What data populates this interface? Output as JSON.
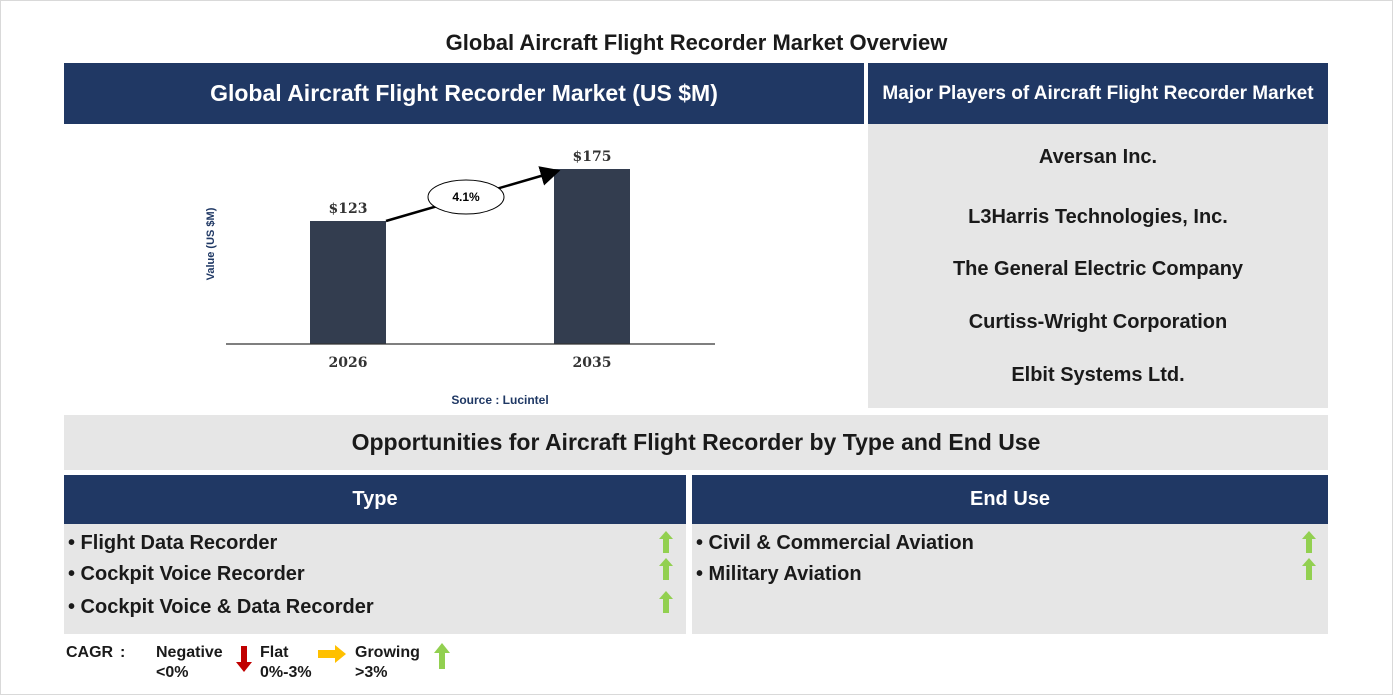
{
  "title": "Global Aircraft Flight Recorder Market Overview",
  "chart_panel": {
    "header": "Global Aircraft Flight Recorder Market (US $M)",
    "source": "Source : Lucintel"
  },
  "chart_data": {
    "type": "bar",
    "categories": [
      "2026",
      "2035"
    ],
    "values": [
      123,
      175
    ],
    "value_labels": [
      "$123",
      "$175"
    ],
    "ylabel": "Value (US $M)",
    "xlabel": "",
    "ylim": [
      0,
      200
    ],
    "cagr_label": "4.1%",
    "bar_color": "#333d4f",
    "grid": false
  },
  "players": {
    "header": "Major Players of Aircraft Flight Recorder Market",
    "items": [
      "Aversan Inc.",
      "L3Harris Technologies, Inc.",
      "The General Electric Company",
      "Curtiss-Wright Corporation",
      "Elbit Systems Ltd."
    ]
  },
  "opportunities": {
    "title": "Opportunities for Aircraft Flight Recorder by Type and End Use",
    "type": {
      "header": "Type",
      "items": [
        {
          "label": "• Flight Data Recorder",
          "trend": "growing"
        },
        {
          "label": "• Cockpit Voice Recorder",
          "trend": "growing"
        },
        {
          "label": "• Cockpit Voice & Data Recorder",
          "trend": "growing"
        }
      ]
    },
    "end_use": {
      "header": "End Use",
      "items": [
        {
          "label": "• Civil & Commercial Aviation",
          "trend": "growing"
        },
        {
          "label": "• Military Aviation",
          "trend": "growing"
        }
      ]
    }
  },
  "legend": {
    "cagr_label": "CAGR",
    "colon": ":",
    "negative": {
      "label": "Negative",
      "range": "<0%",
      "color": "#c00000",
      "icon": "down-arrow-icon"
    },
    "flat": {
      "label": "Flat",
      "range": "0%-3%",
      "color": "#ffc000",
      "icon": "right-arrow-icon"
    },
    "growing": {
      "label": "Growing",
      "range": ">3%",
      "color": "#92d050",
      "icon": "up-arrow-icon"
    }
  },
  "colors": {
    "navy": "#203864",
    "panel_grey": "#e6e6e6",
    "bar": "#333d4f",
    "source_text": "#1f3864"
  }
}
